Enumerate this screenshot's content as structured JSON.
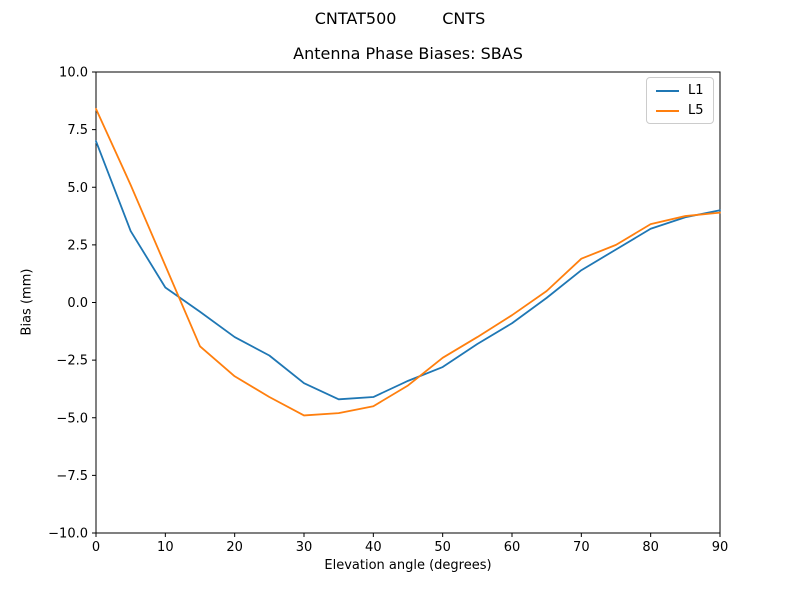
{
  "figure": {
    "suptitle": "CNTAT500         CNTS"
  },
  "chart_data": {
    "type": "line",
    "title": "Antenna Phase Biases: SBAS",
    "xlabel": "Elevation angle (degrees)",
    "ylabel": "Bias (mm)",
    "xlim": [
      0,
      90
    ],
    "ylim": [
      -10,
      10
    ],
    "grid": false,
    "legend_position": "upper right",
    "xticks": [
      0,
      10,
      20,
      30,
      40,
      50,
      60,
      70,
      80,
      90
    ],
    "xticklabels": [
      "0",
      "10",
      "20",
      "30",
      "40",
      "50",
      "60",
      "70",
      "80",
      "90"
    ],
    "yticks": [
      -10,
      -7.5,
      -5,
      -2.5,
      0,
      2.5,
      5,
      7.5,
      10
    ],
    "yticklabels": [
      "−10.0",
      "−7.5",
      "−5.0",
      "−2.5",
      "0.0",
      "2.5",
      "5.0",
      "7.5",
      "10.0"
    ],
    "x": [
      0,
      5,
      10,
      15,
      20,
      25,
      30,
      35,
      40,
      45,
      50,
      55,
      60,
      65,
      70,
      75,
      80,
      85,
      90
    ],
    "series": [
      {
        "name": "L1",
        "color": "#1f77b4",
        "values": [
          7.0,
          3.1,
          0.65,
          -0.4,
          -1.5,
          -2.3,
          -3.5,
          -4.2,
          -4.1,
          -3.4,
          -2.8,
          -1.8,
          -0.9,
          0.2,
          1.4,
          2.3,
          3.2,
          3.7,
          4.0
        ]
      },
      {
        "name": "L5",
        "color": "#ff7f0e",
        "values": [
          8.4,
          5.1,
          1.6,
          -1.9,
          -3.2,
          -4.1,
          -4.9,
          -4.8,
          -4.5,
          -3.6,
          -2.4,
          -1.5,
          -0.55,
          0.5,
          1.9,
          2.5,
          3.4,
          3.75,
          3.9
        ]
      }
    ]
  }
}
